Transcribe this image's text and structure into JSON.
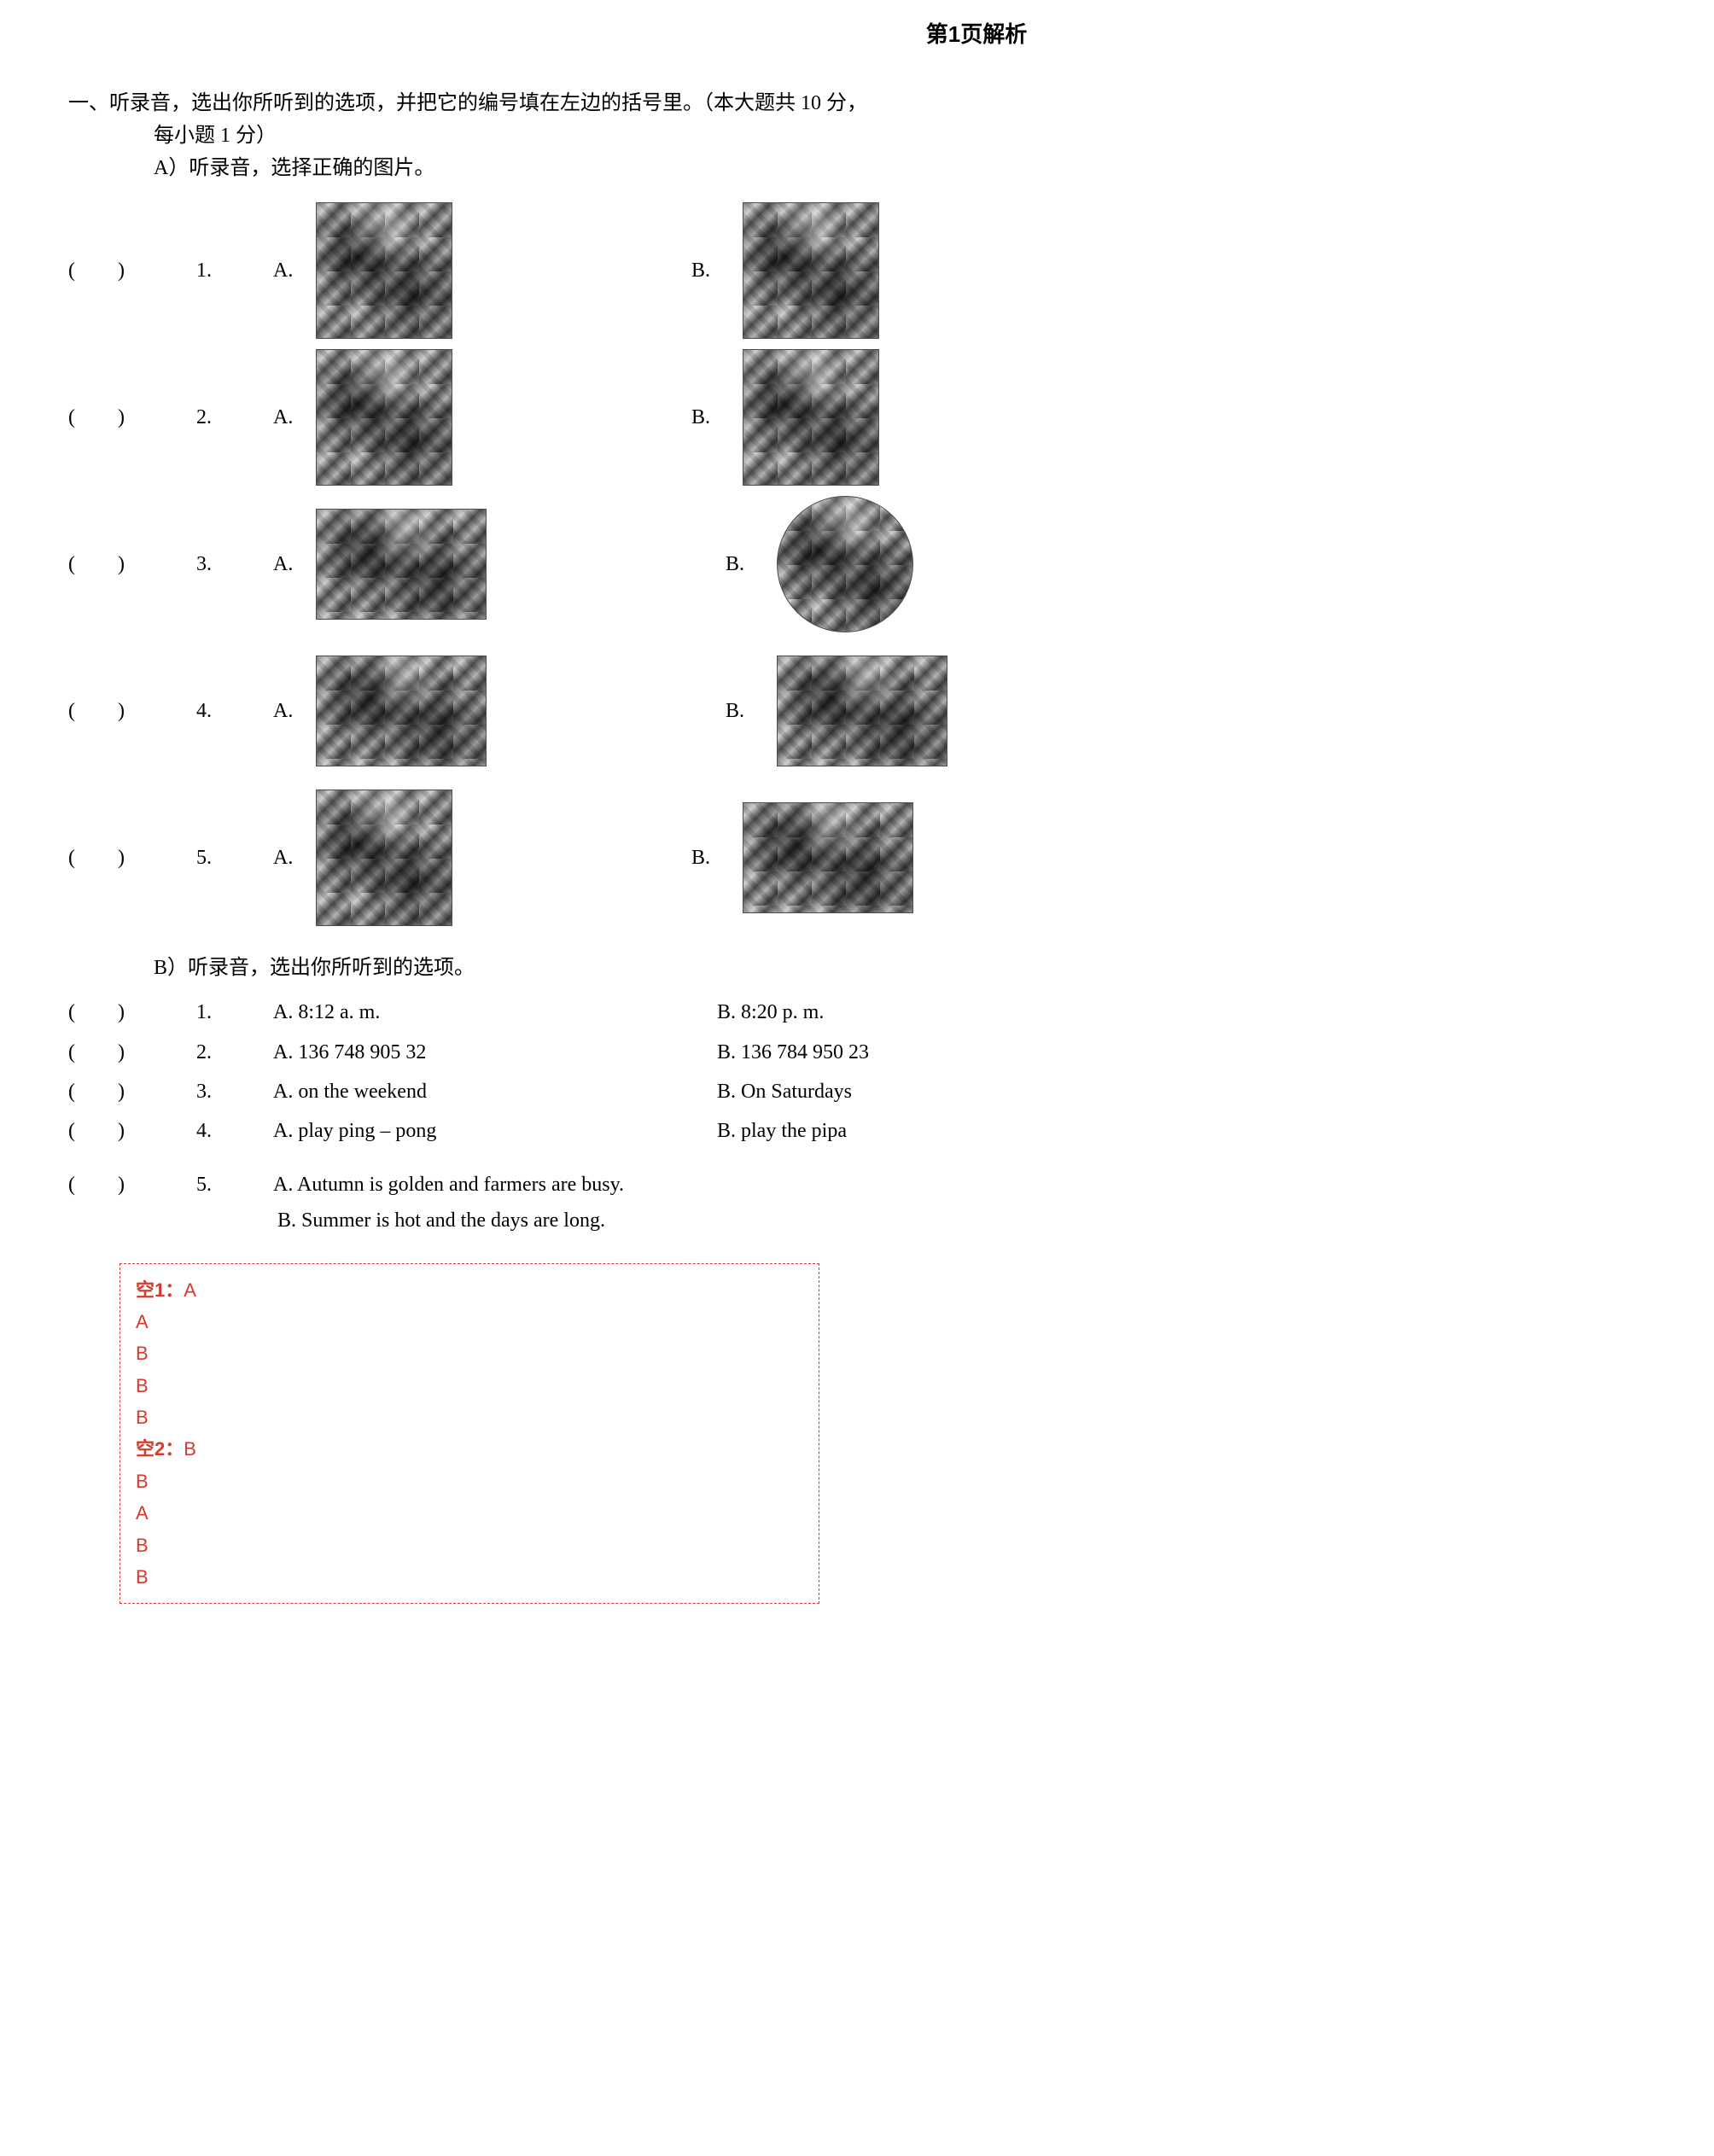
{
  "header": {
    "title": "第1页解析"
  },
  "section1": {
    "lead_prefix": "一、",
    "lead_line1": "听录音，选出你所听到的选项，并把它的编号填在左边的括号里。（本大题共 10 分，",
    "lead_line2": "每小题 1 分）",
    "partA_title": "A）听录音，选择正确的图片。",
    "paren_open": "(",
    "paren_close": ")",
    "imageQuestions": [
      {
        "num": "1.",
        "a_label": "A.",
        "b_label": "B.",
        "a_shape": "",
        "b_shape": ""
      },
      {
        "num": "2.",
        "a_label": "A.",
        "b_label": "B.",
        "a_shape": "",
        "b_shape": ""
      },
      {
        "num": "3.",
        "a_label": "A.",
        "b_label": "B.",
        "a_shape": "wide",
        "b_shape": "round"
      },
      {
        "num": "4.",
        "a_label": "A.",
        "b_label": "B.",
        "a_shape": "wide",
        "b_shape": "wide"
      },
      {
        "num": "5.",
        "a_label": "A.",
        "b_label": "B.",
        "a_shape": "",
        "b_shape": "wide"
      }
    ],
    "partB_title": "B）听录音，选出你所听到的选项。",
    "textQuestions": [
      {
        "num": "1.",
        "a": "A. 8:12 a. m.",
        "b": "B.  8:20 p. m."
      },
      {
        "num": "2.",
        "a": "A. 136 748 905 32",
        "b": "B.  136 784 950 23"
      },
      {
        "num": "3.",
        "a": "A. on the weekend",
        "b": "B.  On Saturdays"
      },
      {
        "num": "4.",
        "a": "A. play ping – pong",
        "b": "B.  play the pipa"
      }
    ],
    "textQuestion5": {
      "num": "5.",
      "a": "A.  Autumn is golden and farmers are busy.",
      "b": "B.  Summer is hot and the days are long."
    }
  },
  "answers": {
    "label1": "空1：",
    "group1": [
      "A",
      "A",
      "B",
      "B",
      "B"
    ],
    "label2": "空2：",
    "group2": [
      "B",
      "B",
      "A",
      "B",
      "B"
    ]
  },
  "colors": {
    "answer_color": "#d43a2e",
    "text_color": "#000000",
    "background": "#ffffff"
  }
}
